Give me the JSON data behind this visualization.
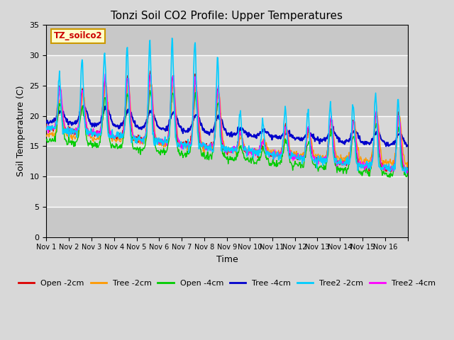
{
  "title": "Tonzi Soil CO2 Profile: Upper Temperatures",
  "xlabel": "Time",
  "ylabel": "Soil Temperature (C)",
  "ylim": [
    0,
    35
  ],
  "yticks": [
    0,
    5,
    10,
    15,
    20,
    25,
    30,
    35
  ],
  "bg_color": "#d8d8d8",
  "text_box_label": "TZ_soilco2",
  "text_box_bg": "#ffffcc",
  "text_box_edge": "#cc9900",
  "series_colors": {
    "open_2cm": "#dd0000",
    "tree_2cm": "#ff9900",
    "open_4cm": "#00cc00",
    "tree_4cm": "#0000cc",
    "tree2_2cm": "#00ccff",
    "tree2_4cm": "#ff00ff"
  },
  "legend_labels": [
    "Open -2cm",
    "Tree -2cm",
    "Open -4cm",
    "Tree -4cm",
    "Tree2 -2cm",
    "Tree2 -4cm"
  ],
  "xtick_labels": [
    "Nov 1",
    "Nov 2",
    "Nov 3",
    "Nov 4",
    "Nov 5",
    "Nov 6",
    "Nov 7",
    "Nov 8",
    "Nov 9",
    "Nov 10",
    "Nov 11",
    "Nov 12",
    "Nov 13",
    "Nov 14",
    "Nov 15",
    "Nov 16"
  ],
  "n_days": 16,
  "points_per_day": 48
}
